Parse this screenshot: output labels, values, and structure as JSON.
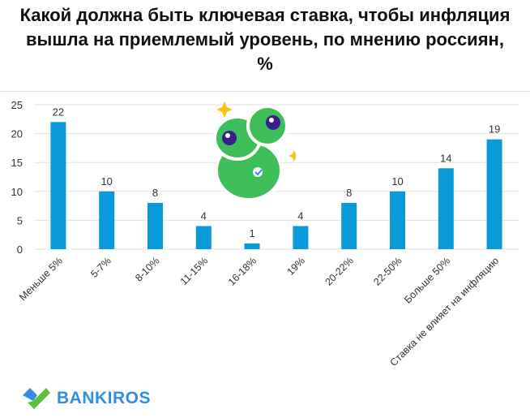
{
  "chart_data": {
    "type": "bar",
    "title": "Какой должна быть ключевая ставка, чтобы инфляция вышла на приемлемый уровень, по мнению россиян, %",
    "categories": [
      "Меньше 5%",
      "5-7%",
      "8-10%",
      "11-15%",
      "16-18%",
      "19%",
      "20-22%",
      "22-50%",
      "Больше 50%",
      "Ставка не влияет на инфляцию"
    ],
    "values": [
      22,
      10,
      8,
      4,
      1,
      4,
      8,
      10,
      14,
      19
    ],
    "xlabel": "",
    "ylabel": "",
    "ylim": [
      0,
      25
    ],
    "yticks": [
      0,
      5,
      10,
      15,
      20,
      25
    ],
    "grid": true,
    "bar_color": "#0a9ad9"
  },
  "brand": {
    "name": "BANKIROS",
    "color": "#2f8fe3"
  }
}
